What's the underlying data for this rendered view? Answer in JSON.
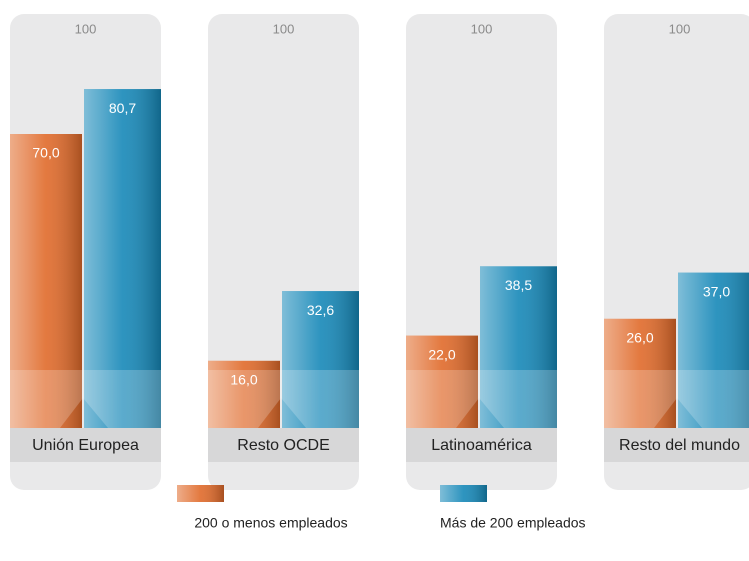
{
  "chart_data": {
    "type": "bar",
    "categories": [
      "Unión Europea",
      "Resto OCDE",
      "Latinoamérica",
      "Resto del mundo"
    ],
    "series": [
      {
        "name": "200 o menos empleados",
        "color": "#e06a2a",
        "values": [
          70.0,
          16.0,
          22.0,
          26.0
        ],
        "value_labels": [
          "70,0",
          "16,0",
          "22,0",
          "26,0"
        ]
      },
      {
        "name": "Más de 200 empleados",
        "color": "#1688b8",
        "values": [
          80.7,
          32.6,
          38.5,
          37.0
        ],
        "value_labels": [
          "80,7",
          "32,6",
          "38,5",
          "37,0"
        ]
      }
    ],
    "ylim": [
      0,
      100
    ],
    "yticks": [
      100
    ]
  }
}
